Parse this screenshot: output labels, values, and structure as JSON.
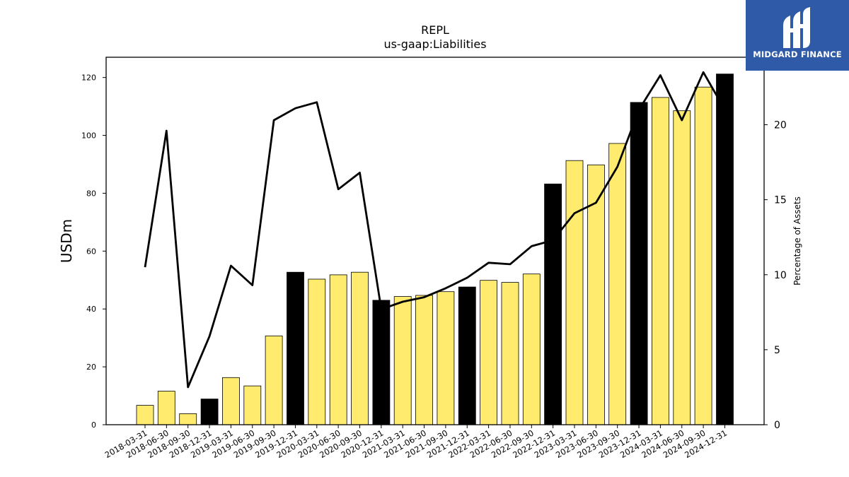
{
  "logo": {
    "text": "MIDGARD FINANCE",
    "icon": "mf-monogram-icon",
    "color": "#2e5aa8"
  },
  "chart_data": {
    "type": "bar+line",
    "title": "REPL",
    "subtitle": "us-gaap:Liabilities",
    "ylabel": "USDm",
    "y2label": "Percentage of Assets",
    "ylim": [
      0,
      127
    ],
    "y2lim": [
      0,
      24.5
    ],
    "yticks": [
      0,
      20,
      40,
      60,
      80,
      100,
      120
    ],
    "y2ticks": [
      0,
      5,
      10,
      15,
      20
    ],
    "grid": false,
    "legend": "none",
    "categories": [
      "2018-03-31",
      "2018-06-30",
      "2018-09-30",
      "2018-12-31",
      "2019-03-31",
      "2019-06-30",
      "2019-09-30",
      "2019-12-31",
      "2020-03-31",
      "2020-06-30",
      "2020-09-30",
      "2020-12-31",
      "2021-03-31",
      "2021-06-30",
      "2021-09-30",
      "2021-12-31",
      "2022-03-31",
      "2022-06-30",
      "2022-09-30",
      "2022-12-31",
      "2023-03-31",
      "2023-06-30",
      "2023-09-30",
      "2023-12-31",
      "2024-03-31",
      "2024-06-30",
      "2024-09-30",
      "2024-12-31"
    ],
    "bars": {
      "values": [
        6.7,
        11.6,
        3.8,
        8.9,
        16.3,
        13.4,
        30.7,
        52.7,
        50.3,
        51.8,
        52.7,
        43.0,
        44.3,
        44.7,
        46.0,
        47.6,
        49.9,
        49.2,
        52.1,
        83.2,
        91.3,
        89.8,
        97.2,
        111.4,
        113.1,
        108.5,
        116.7,
        121.2
      ],
      "year_end_color": "#000000",
      "quarter_color": "#ffec6e"
    },
    "line": {
      "values": [
        10.5,
        19.6,
        2.5,
        5.9,
        10.6,
        9.3,
        20.3,
        21.1,
        21.5,
        15.7,
        16.8,
        7.7,
        8.2,
        8.5,
        9.1,
        9.8,
        10.8,
        10.7,
        11.9,
        12.3,
        14.1,
        14.8,
        17.2,
        21.0,
        23.3,
        20.3,
        23.5,
        21.0
      ],
      "color": "#000000"
    }
  }
}
